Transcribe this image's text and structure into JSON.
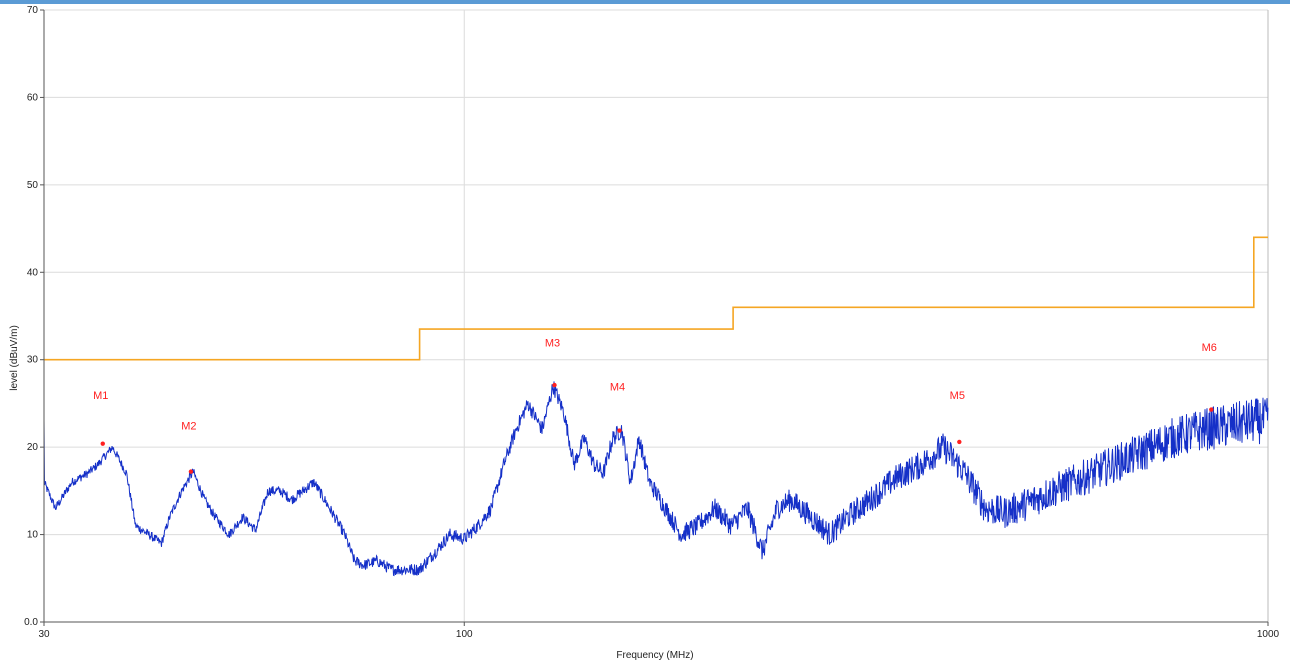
{
  "colors": {
    "trace": "#1530c8",
    "limit": "#f5a623",
    "marker": "#ff2020",
    "grid": "#dcdcdc",
    "header_bar": "#5b9bd5"
  },
  "chart_data": {
    "type": "line",
    "title": "",
    "xlabel": "Frequency (MHz)",
    "ylabel": "level (dBuV/m)",
    "x_scale": "log",
    "xlim": [
      30,
      1000
    ],
    "ylim": [
      0,
      70
    ],
    "x_ticks": [
      30,
      100,
      1000
    ],
    "y_ticks": [
      0,
      10,
      20,
      30,
      40,
      50,
      60,
      70
    ],
    "y_tick_labels": [
      "0.0",
      "10",
      "20",
      "30",
      "40",
      "50",
      "60",
      "70"
    ],
    "grid": true,
    "series": [
      {
        "kind": "limit-step",
        "points": [
          [
            30,
            30
          ],
          [
            88,
            30
          ],
          [
            88,
            33.5
          ],
          [
            216,
            33.5
          ],
          [
            216,
            36
          ],
          [
            960,
            36
          ],
          [
            960,
            44
          ],
          [
            1000,
            44
          ]
        ]
      },
      {
        "kind": "trace",
        "points": [
          [
            30,
            16
          ],
          [
            31,
            13
          ],
          [
            32.5,
            16
          ],
          [
            34,
            17
          ],
          [
            35,
            18
          ],
          [
            36.5,
            20
          ],
          [
            38,
            17
          ],
          [
            39,
            11
          ],
          [
            40.5,
            10
          ],
          [
            42,
            9
          ],
          [
            43,
            12
          ],
          [
            44.5,
            15
          ],
          [
            46,
            17.2
          ],
          [
            47.5,
            14
          ],
          [
            49,
            12
          ],
          [
            51,
            10
          ],
          [
            53,
            12
          ],
          [
            55,
            10.5
          ],
          [
            57,
            15
          ],
          [
            59,
            15
          ],
          [
            61,
            14
          ],
          [
            63,
            15
          ],
          [
            65,
            16
          ],
          [
            67,
            14
          ],
          [
            69,
            12
          ],
          [
            71,
            10
          ],
          [
            73,
            7
          ],
          [
            75,
            6.5
          ],
          [
            78,
            7
          ],
          [
            81,
            6
          ],
          [
            85,
            6
          ],
          [
            88,
            6
          ],
          [
            92,
            8
          ],
          [
            96,
            10
          ],
          [
            100,
            9.5
          ],
          [
            104,
            11
          ],
          [
            108,
            13
          ],
          [
            112,
            18
          ],
          [
            116,
            22
          ],
          [
            120,
            25
          ],
          [
            125,
            22
          ],
          [
            129,
            27
          ],
          [
            133,
            24
          ],
          [
            137,
            18
          ],
          [
            141,
            21
          ],
          [
            145,
            18
          ],
          [
            149,
            17
          ],
          [
            153,
            21
          ],
          [
            157,
            22
          ],
          [
            161,
            16
          ],
          [
            165,
            21
          ],
          [
            170,
            16
          ],
          [
            178,
            13
          ],
          [
            186,
            10
          ],
          [
            195,
            11
          ],
          [
            205,
            13
          ],
          [
            215,
            11
          ],
          [
            225,
            13
          ],
          [
            235,
            8
          ],
          [
            245,
            13
          ],
          [
            255,
            14
          ],
          [
            270,
            12
          ],
          [
            285,
            10
          ],
          [
            300,
            12
          ],
          [
            320,
            14
          ],
          [
            345,
            16.5
          ],
          [
            370,
            18
          ],
          [
            395,
            20
          ],
          [
            420,
            17
          ],
          [
            445,
            13
          ],
          [
            470,
            12.5
          ],
          [
            500,
            13.5
          ],
          [
            540,
            15
          ],
          [
            590,
            16.5
          ],
          [
            640,
            18
          ],
          [
            700,
            19.5
          ],
          [
            760,
            21
          ],
          [
            830,
            22
          ],
          [
            900,
            22.5
          ],
          [
            960,
            23
          ],
          [
            1000,
            23
          ]
        ]
      }
    ],
    "markers": [
      {
        "label": "M1",
        "x": 35.5,
        "y": 20.4
      },
      {
        "label": "M2",
        "x": 45.7,
        "y": 17.2
      },
      {
        "label": "M3",
        "x": 129.5,
        "y": 27.1
      },
      {
        "label": "M4",
        "x": 156,
        "y": 21.9
      },
      {
        "label": "M5",
        "x": 413,
        "y": 20.6
      },
      {
        "label": "M6",
        "x": 850,
        "y": 24.3
      }
    ],
    "marker_label_y": [
      25.5,
      22,
      31.5,
      26.5,
      25.5,
      31
    ]
  }
}
